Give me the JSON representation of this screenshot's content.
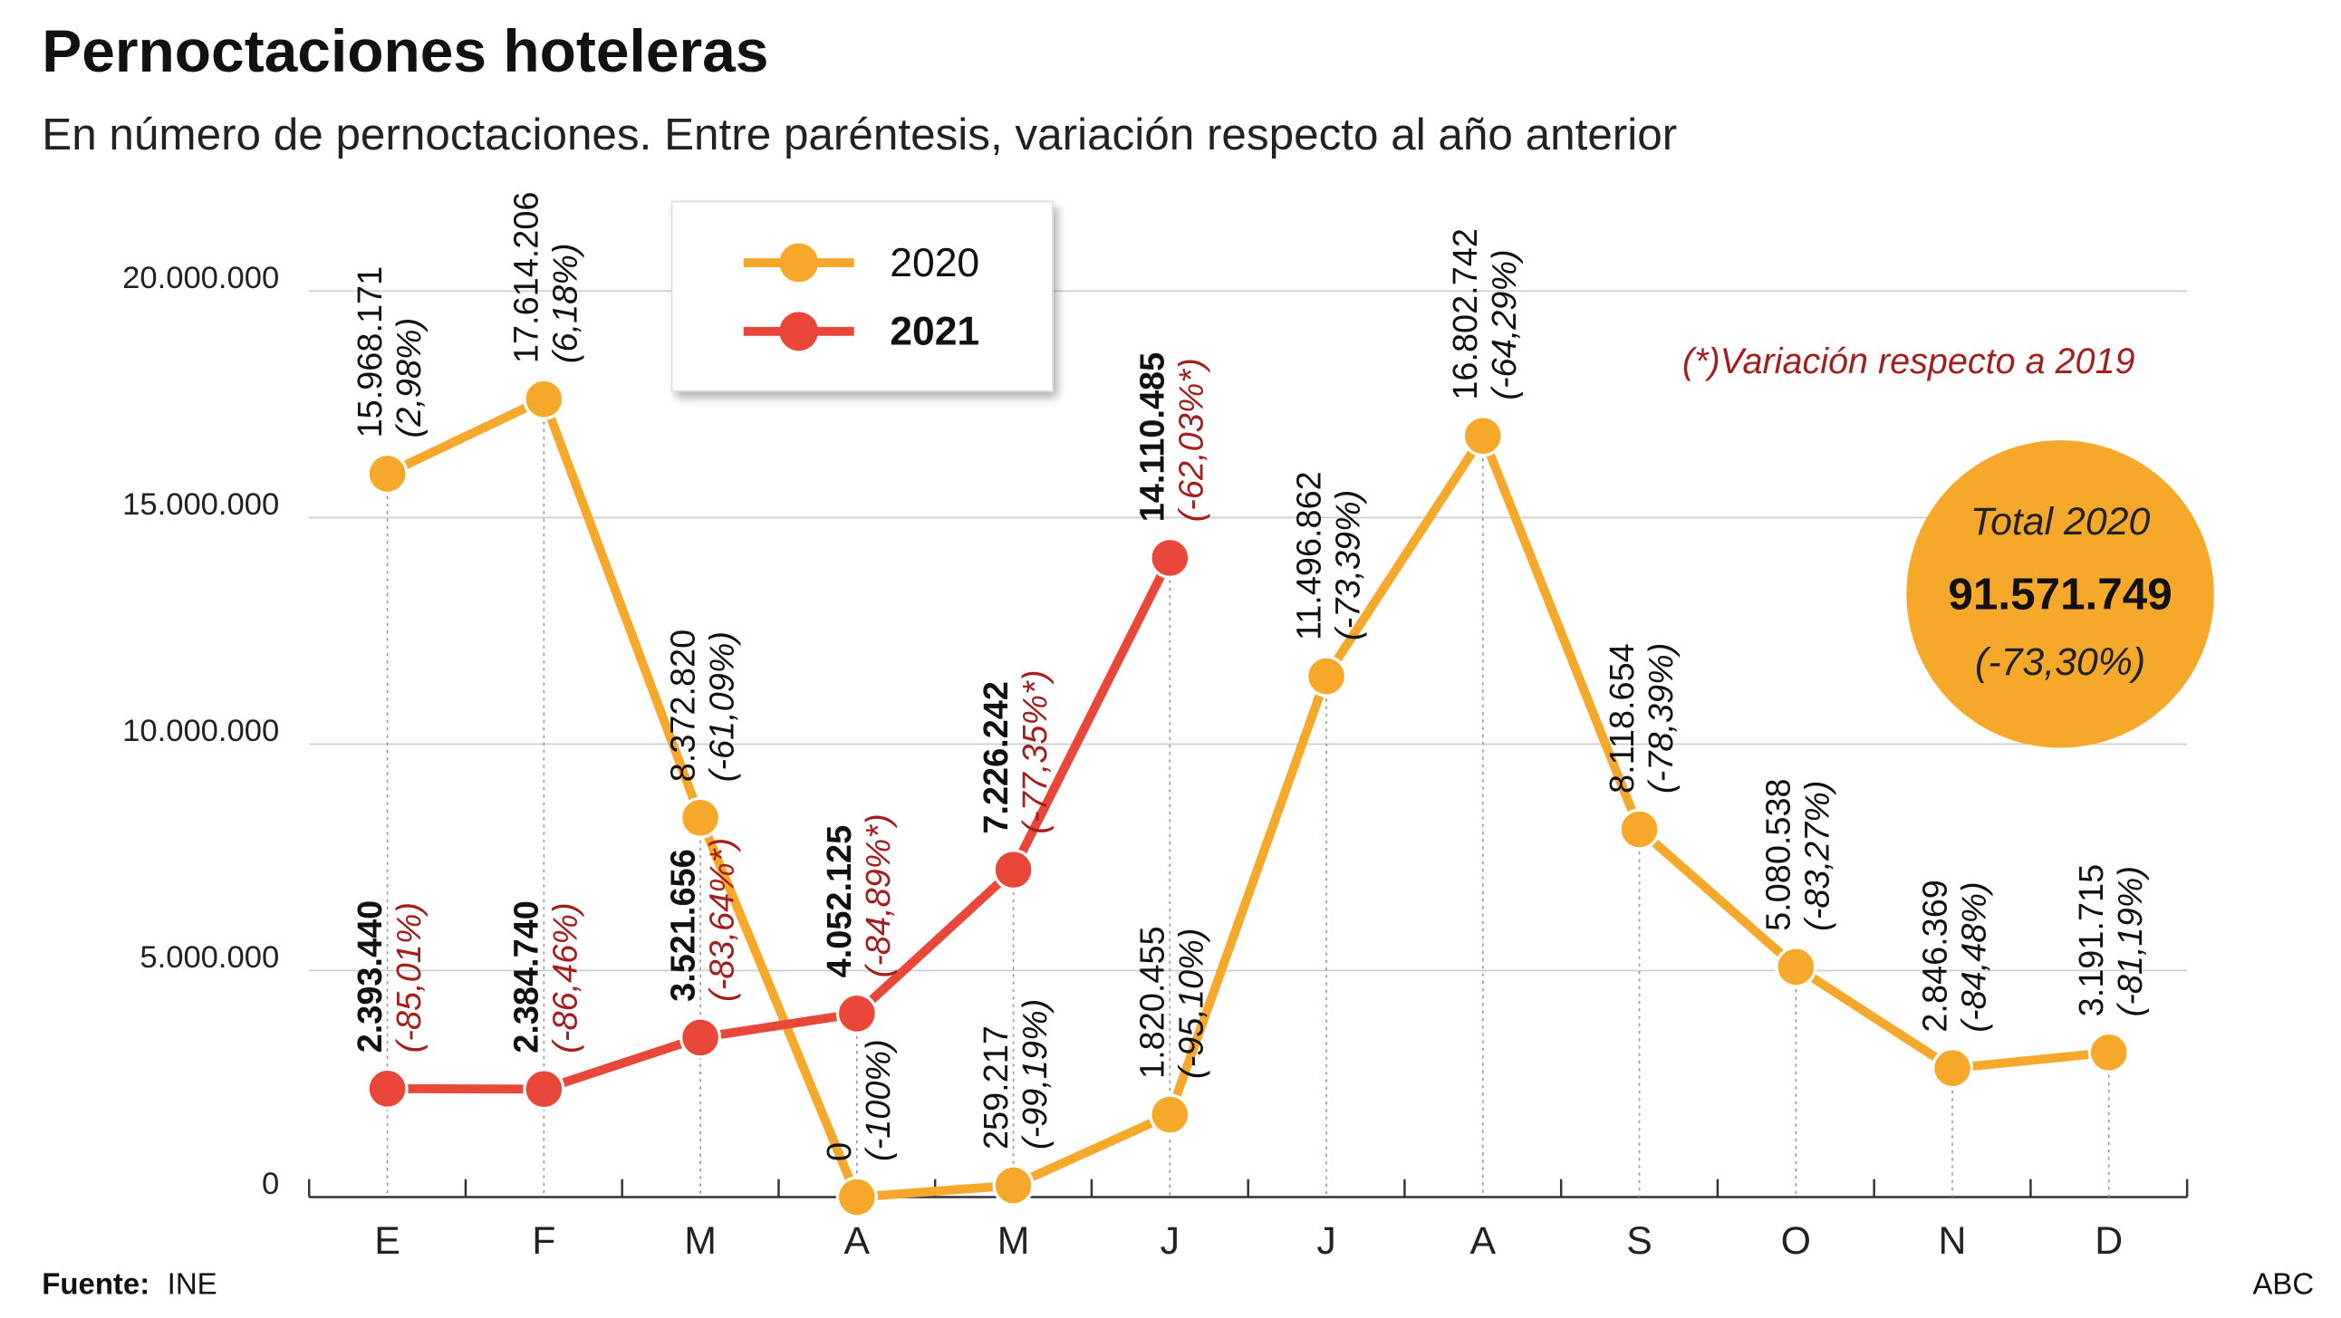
{
  "chart_data": {
    "type": "line",
    "title": "Pernoctaciones hoteleras",
    "subtitle": "En número de pernoctaciones. Entre paréntesis, variación respecto al año anterior",
    "note": "(*)Variación respecto a 2019",
    "source_label": "Fuente:",
    "source": "INE",
    "credit": "ABC",
    "total": {
      "title": "Total 2020",
      "value": 91571749,
      "value_label": "91.571.749",
      "variation": "(-73,30%)"
    },
    "categories": [
      "E",
      "F",
      "M",
      "A",
      "M",
      "J",
      "J",
      "A",
      "S",
      "O",
      "N",
      "D"
    ],
    "ylim": [
      0,
      20000000
    ],
    "yticks": [
      0,
      {
        "value": 5000000,
        "label": "5.000.000"
      },
      {
        "value": 10000000,
        "label": "10.000.000"
      },
      {
        "value": 15000000,
        "label": "15.000.000"
      },
      {
        "value": 20000000,
        "label": "20.000.000"
      }
    ],
    "legend": "top",
    "series": [
      {
        "name": "2020",
        "color": "#f5a82a",
        "values": [
          15968171,
          17614206,
          8372820,
          0,
          259217,
          1820455,
          11496862,
          16802742,
          8118654,
          5080538,
          2846369,
          3191715
        ],
        "value_labels": [
          "15.968.171",
          "17.614.206",
          "8.372.820",
          "0",
          "259.217",
          "1.820.455",
          "11.496.862",
          "16.802.742",
          "8.118.654",
          "5.080.538",
          "2.846.369",
          "3.191.715"
        ],
        "variations": [
          "(2,98%)",
          "(6,18%)",
          "(-61,09%)",
          "(-100%)",
          "(-99,19%)",
          "(-95,10%)",
          "(-73,39%)",
          "(-64,29%)",
          "(-78,39%)",
          "(-83,27%)",
          "(-84,48%)",
          "(-81,19%)"
        ]
      },
      {
        "name": "2021",
        "color": "#e8473a",
        "values": [
          2393440,
          2384740,
          3521656,
          4052125,
          7226242,
          14110485,
          null,
          null,
          null,
          null,
          null,
          null
        ],
        "value_labels": [
          "2.393.440",
          "2.384.740",
          "3.521.656",
          "4.052.125",
          "7.226.242",
          "14.110.485",
          null,
          null,
          null,
          null,
          null,
          null
        ],
        "variations": [
          "(-85,01%)",
          "(-86,46%)",
          "(-83,64%*)",
          "(-84,89%*)",
          "(-77,35%*)",
          "(-62,03%*)",
          null,
          null,
          null,
          null,
          null,
          null
        ]
      }
    ]
  }
}
